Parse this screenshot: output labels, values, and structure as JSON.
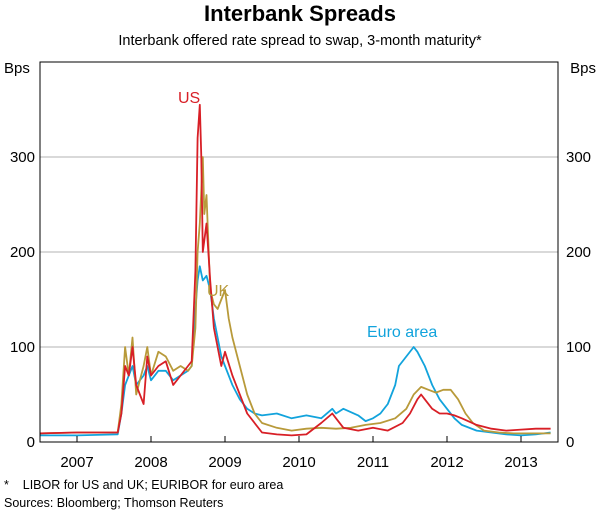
{
  "chart_data": {
    "type": "line",
    "title": "Interbank Spreads",
    "subtitle": "Interbank offered rate spread to swap, 3-month maturity*",
    "ylabel_left": "Bps",
    "ylabel_right": "Bps",
    "ylim": [
      0,
      400
    ],
    "xlim": [
      2006.5,
      2013.5
    ],
    "yticks": [
      0,
      100,
      200,
      300
    ],
    "ytick_labels": [
      "0",
      "100",
      "200",
      "300"
    ],
    "xtick_labels": [
      "2007",
      "2008",
      "2009",
      "2010",
      "2011",
      "2012",
      "2013"
    ],
    "xtick_positions": [
      2007,
      2008,
      2009,
      2010,
      2011,
      2012,
      2013
    ],
    "grid": true,
    "footnote": "*    LIBOR for US and UK; EURIBOR for euro area",
    "sources": "Sources: Bloomberg; Thomson Reuters",
    "series": [
      {
        "name": "US",
        "color": "#d81f26",
        "points": [
          [
            2006.5,
            9
          ],
          [
            2007.0,
            10
          ],
          [
            2007.55,
            10
          ],
          [
            2007.6,
            30
          ],
          [
            2007.65,
            80
          ],
          [
            2007.7,
            70
          ],
          [
            2007.75,
            100
          ],
          [
            2007.8,
            60
          ],
          [
            2007.9,
            40
          ],
          [
            2007.95,
            90
          ],
          [
            2008.0,
            70
          ],
          [
            2008.1,
            80
          ],
          [
            2008.2,
            85
          ],
          [
            2008.3,
            60
          ],
          [
            2008.4,
            70
          ],
          [
            2008.5,
            80
          ],
          [
            2008.55,
            85
          ],
          [
            2008.6,
            180
          ],
          [
            2008.63,
            320
          ],
          [
            2008.66,
            355
          ],
          [
            2008.68,
            300
          ],
          [
            2008.7,
            200
          ],
          [
            2008.75,
            230
          ],
          [
            2008.8,
            170
          ],
          [
            2008.85,
            120
          ],
          [
            2008.9,
            100
          ],
          [
            2008.95,
            80
          ],
          [
            2009.0,
            95
          ],
          [
            2009.1,
            70
          ],
          [
            2009.2,
            50
          ],
          [
            2009.3,
            30
          ],
          [
            2009.4,
            20
          ],
          [
            2009.5,
            10
          ],
          [
            2009.7,
            8
          ],
          [
            2009.9,
            7
          ],
          [
            2010.1,
            8
          ],
          [
            2010.3,
            20
          ],
          [
            2010.45,
            30
          ],
          [
            2010.5,
            25
          ],
          [
            2010.6,
            15
          ],
          [
            2010.8,
            12
          ],
          [
            2011.0,
            15
          ],
          [
            2011.2,
            12
          ],
          [
            2011.4,
            20
          ],
          [
            2011.5,
            30
          ],
          [
            2011.6,
            45
          ],
          [
            2011.65,
            50
          ],
          [
            2011.7,
            45
          ],
          [
            2011.8,
            35
          ],
          [
            2011.9,
            30
          ],
          [
            2012.0,
            30
          ],
          [
            2012.1,
            28
          ],
          [
            2012.2,
            25
          ],
          [
            2012.4,
            18
          ],
          [
            2012.6,
            14
          ],
          [
            2012.8,
            12
          ],
          [
            2013.0,
            13
          ],
          [
            2013.2,
            14
          ],
          [
            2013.4,
            14
          ]
        ]
      },
      {
        "name": "UK",
        "color": "#b89a3a",
        "points": [
          [
            2006.5,
            9
          ],
          [
            2007.0,
            10
          ],
          [
            2007.55,
            10
          ],
          [
            2007.6,
            40
          ],
          [
            2007.65,
            100
          ],
          [
            2007.7,
            70
          ],
          [
            2007.75,
            110
          ],
          [
            2007.8,
            50
          ],
          [
            2007.9,
            80
          ],
          [
            2007.95,
            100
          ],
          [
            2008.0,
            70
          ],
          [
            2008.1,
            95
          ],
          [
            2008.2,
            90
          ],
          [
            2008.3,
            75
          ],
          [
            2008.4,
            80
          ],
          [
            2008.5,
            75
          ],
          [
            2008.55,
            80
          ],
          [
            2008.6,
            120
          ],
          [
            2008.63,
            200
          ],
          [
            2008.66,
            230
          ],
          [
            2008.7,
            300
          ],
          [
            2008.72,
            240
          ],
          [
            2008.75,
            260
          ],
          [
            2008.8,
            160
          ],
          [
            2008.85,
            145
          ],
          [
            2008.9,
            140
          ],
          [
            2008.95,
            150
          ],
          [
            2009.0,
            160
          ],
          [
            2009.05,
            130
          ],
          [
            2009.1,
            110
          ],
          [
            2009.2,
            80
          ],
          [
            2009.3,
            50
          ],
          [
            2009.4,
            30
          ],
          [
            2009.5,
            20
          ],
          [
            2009.7,
            15
          ],
          [
            2009.9,
            12
          ],
          [
            2010.1,
            14
          ],
          [
            2010.3,
            15
          ],
          [
            2010.5,
            14
          ],
          [
            2010.7,
            15
          ],
          [
            2010.9,
            18
          ],
          [
            2011.1,
            20
          ],
          [
            2011.3,
            25
          ],
          [
            2011.45,
            35
          ],
          [
            2011.55,
            50
          ],
          [
            2011.65,
            58
          ],
          [
            2011.75,
            55
          ],
          [
            2011.85,
            52
          ],
          [
            2011.95,
            55
          ],
          [
            2012.05,
            55
          ],
          [
            2012.15,
            45
          ],
          [
            2012.25,
            30
          ],
          [
            2012.35,
            20
          ],
          [
            2012.5,
            12
          ],
          [
            2012.7,
            10
          ],
          [
            2012.9,
            9
          ],
          [
            2013.1,
            9
          ],
          [
            2013.4,
            9
          ]
        ]
      },
      {
        "name": "Euro area",
        "color": "#12a3dc",
        "points": [
          [
            2006.5,
            7
          ],
          [
            2007.0,
            7
          ],
          [
            2007.55,
            8
          ],
          [
            2007.6,
            30
          ],
          [
            2007.65,
            60
          ],
          [
            2007.7,
            70
          ],
          [
            2007.75,
            80
          ],
          [
            2007.8,
            60
          ],
          [
            2007.9,
            70
          ],
          [
            2007.95,
            80
          ],
          [
            2008.0,
            65
          ],
          [
            2008.1,
            75
          ],
          [
            2008.2,
            75
          ],
          [
            2008.3,
            65
          ],
          [
            2008.4,
            70
          ],
          [
            2008.5,
            75
          ],
          [
            2008.55,
            80
          ],
          [
            2008.6,
            140
          ],
          [
            2008.63,
            170
          ],
          [
            2008.66,
            185
          ],
          [
            2008.7,
            170
          ],
          [
            2008.75,
            175
          ],
          [
            2008.8,
            160
          ],
          [
            2008.85,
            130
          ],
          [
            2008.9,
            110
          ],
          [
            2008.95,
            90
          ],
          [
            2009.0,
            80
          ],
          [
            2009.1,
            60
          ],
          [
            2009.2,
            45
          ],
          [
            2009.3,
            35
          ],
          [
            2009.4,
            30
          ],
          [
            2009.5,
            28
          ],
          [
            2009.7,
            30
          ],
          [
            2009.9,
            25
          ],
          [
            2010.1,
            28
          ],
          [
            2010.3,
            25
          ],
          [
            2010.45,
            35
          ],
          [
            2010.5,
            30
          ],
          [
            2010.6,
            35
          ],
          [
            2010.8,
            28
          ],
          [
            2010.9,
            22
          ],
          [
            2011.0,
            25
          ],
          [
            2011.1,
            30
          ],
          [
            2011.2,
            40
          ],
          [
            2011.3,
            60
          ],
          [
            2011.35,
            80
          ],
          [
            2011.45,
            90
          ],
          [
            2011.55,
            100
          ],
          [
            2011.6,
            95
          ],
          [
            2011.7,
            80
          ],
          [
            2011.8,
            60
          ],
          [
            2011.9,
            45
          ],
          [
            2012.0,
            35
          ],
          [
            2012.1,
            25
          ],
          [
            2012.2,
            18
          ],
          [
            2012.4,
            12
          ],
          [
            2012.6,
            10
          ],
          [
            2012.8,
            8
          ],
          [
            2013.0,
            7
          ],
          [
            2013.2,
            8
          ],
          [
            2013.4,
            10
          ]
        ]
      }
    ]
  }
}
